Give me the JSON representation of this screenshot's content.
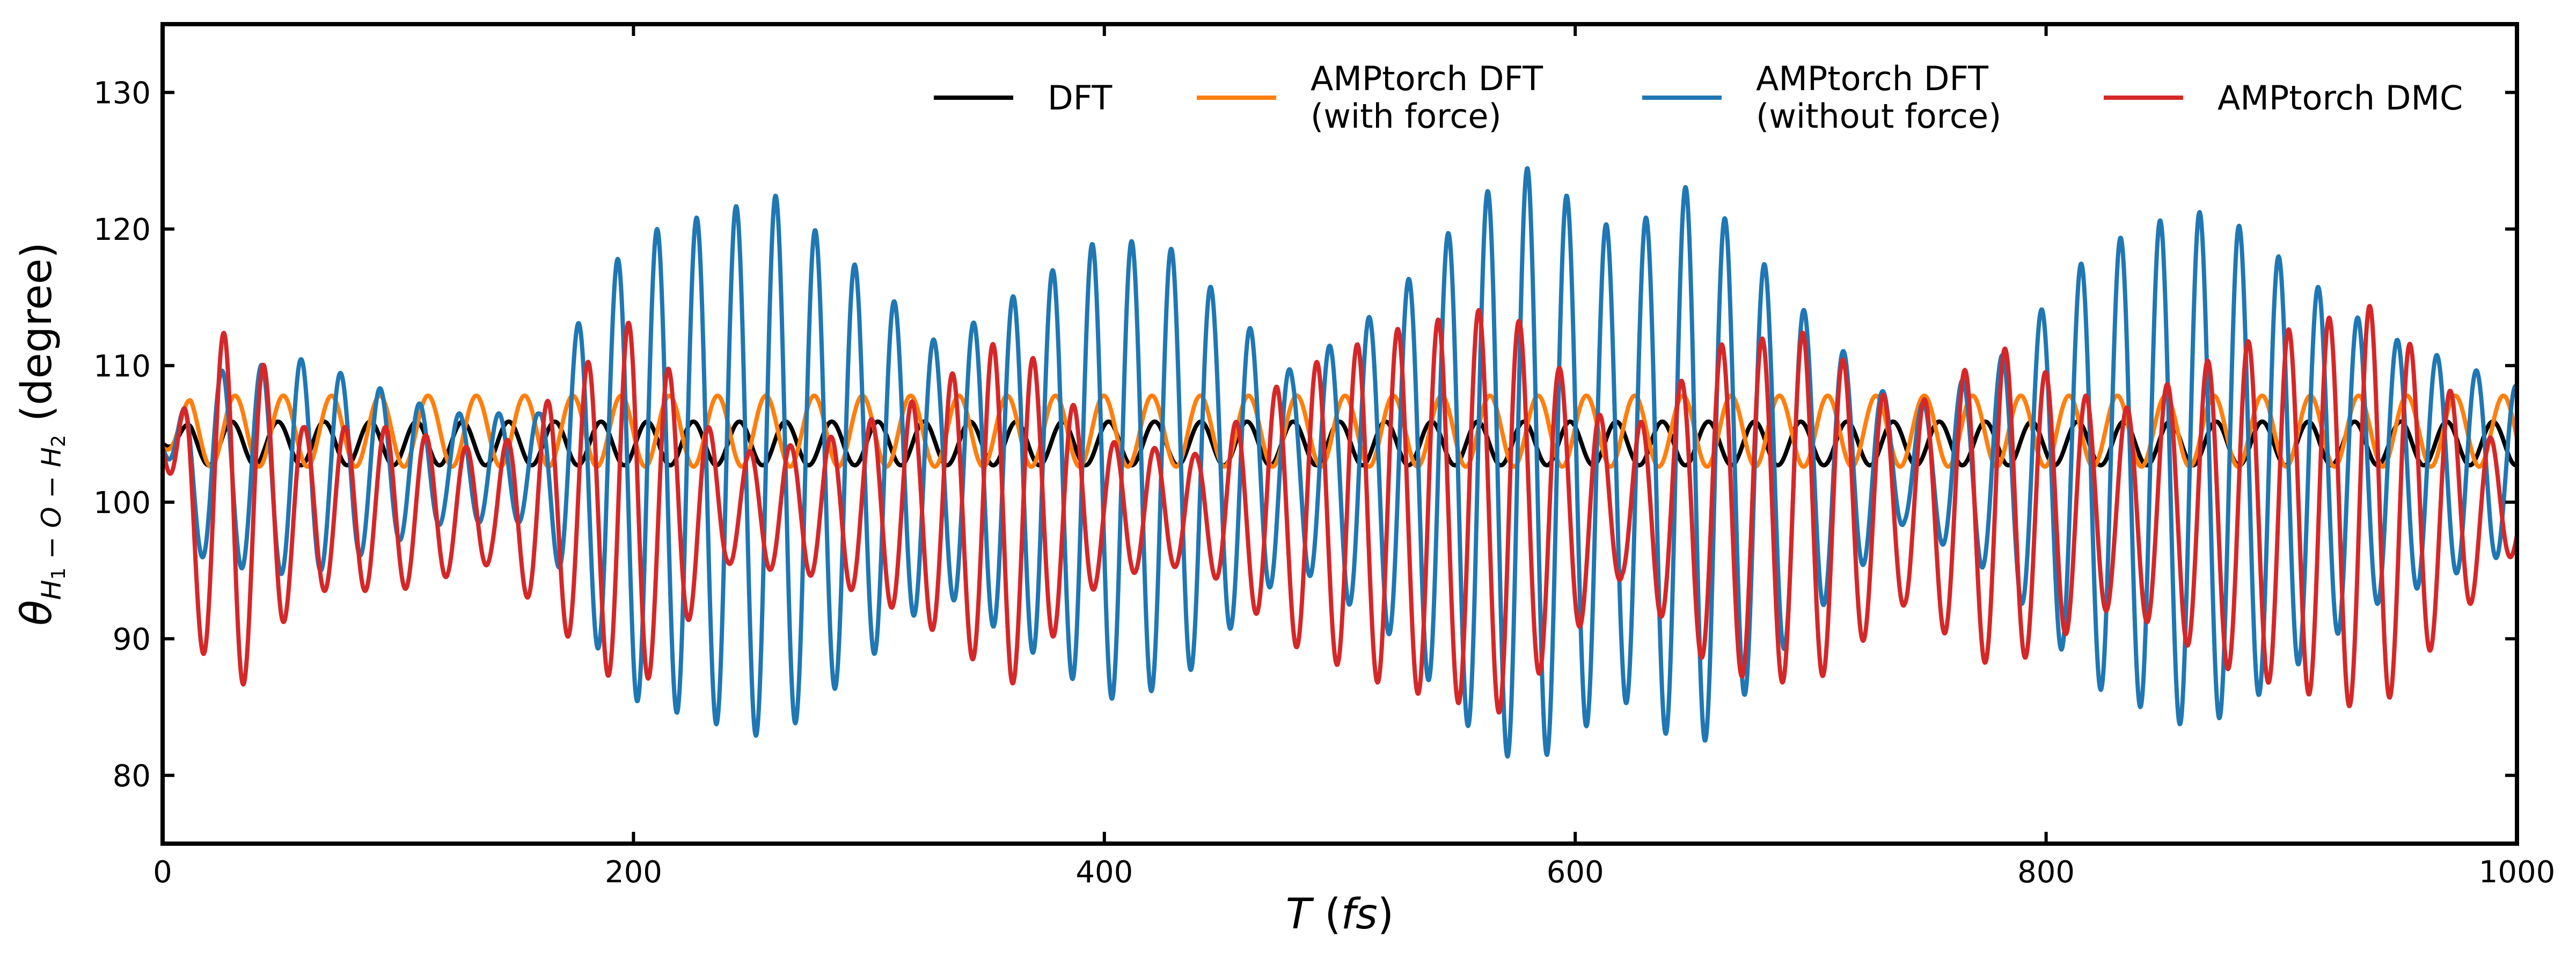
{
  "chart_data": {
    "type": "line",
    "xlabel": "T (fs)",
    "ylabel": "θ_{H1−O−H2} (degree)",
    "xlim": [
      0,
      1000
    ],
    "ylim": [
      75,
      135
    ],
    "x_ticks": [
      "0",
      "200",
      "400",
      "600",
      "800",
      "1000"
    ],
    "y_ticks": [
      "80",
      "90",
      "100",
      "110",
      "120",
      "130"
    ],
    "grid": false,
    "legend_position": "top-right",
    "legend": [
      {
        "label": "DFT",
        "color": "#000000"
      },
      {
        "label": "AMPtorch DFT",
        "label2": "(with force)",
        "color": "#ff7f0e"
      },
      {
        "label": "AMPtorch DFT",
        "label2": "(without force)",
        "color": "#1f77b4"
      },
      {
        "label": "AMPtorch DMC",
        "color": "#d62728"
      }
    ],
    "series": [
      {
        "name": "DFT",
        "color": "#000000",
        "model": {
          "mean": 104.3,
          "amplitude": 1.6,
          "period_fs": 19.6,
          "start": 104.3
        },
        "range": [
          102.5,
          106.0
        ]
      },
      {
        "name": "AMPtorch DFT (with force)",
        "color": "#ff7f0e",
        "model": {
          "mean": 105.2,
          "amplitude": 2.6,
          "period_fs": 20.5,
          "start": 104.0
        },
        "range": [
          102.5,
          108.0
        ]
      },
      {
        "name": "AMPtorch DFT (without force)",
        "color": "#1f77b4",
        "model": {
          "mean": 102.5,
          "period_fs": 16.8,
          "start": 104.0
        },
        "amplitude_envelope": {
          "x": [
            0,
            20,
            60,
            120,
            160,
            180,
            200,
            260,
            300,
            330,
            400,
            430,
            480,
            520,
            560,
            580,
            620,
            650,
            700,
            740,
            780,
            820,
            860,
            880,
            940,
            1000
          ],
          "y": [
            4,
            7,
            8,
            4,
            4,
            12,
            17,
            20,
            14,
            9,
            17,
            16,
            7,
            12,
            20,
            22,
            17,
            21,
            11,
            4,
            8,
            16,
            19,
            18,
            10,
            6
          ]
        },
        "range": [
          79.5,
          125.5
        ]
      },
      {
        "name": "AMPtorch DMC",
        "color": "#d62728",
        "model": {
          "mean": 99.5,
          "period_fs": 17.2,
          "start": 104.0
        },
        "amplitude_envelope": {
          "x": [
            0,
            30,
            60,
            100,
            140,
            170,
            200,
            240,
            280,
            320,
            360,
            400,
            440,
            480,
            520,
            570,
            620,
            660,
            700,
            740,
            780,
            830,
            880,
            940,
            1000
          ],
          "y": [
            6,
            14,
            6,
            6,
            4,
            9,
            14,
            4,
            5,
            8,
            13,
            5,
            4,
            10,
            13,
            15,
            5,
            12,
            13,
            7,
            12,
            7,
            12,
            15,
            3
          ]
        },
        "range": [
          83.0,
          114.5
        ]
      }
    ]
  }
}
